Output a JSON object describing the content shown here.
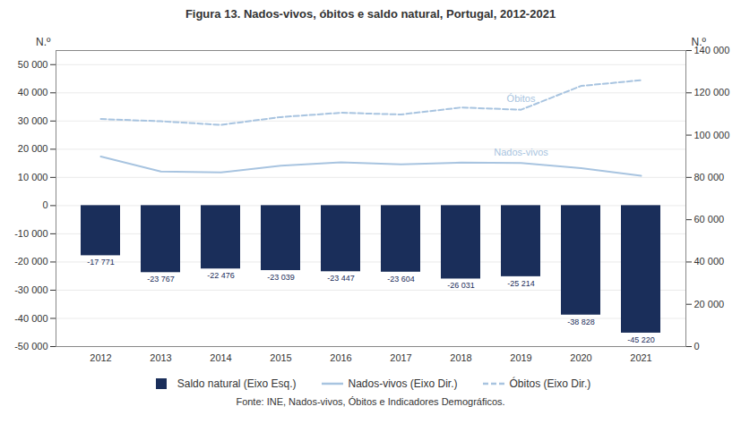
{
  "chart_data": {
    "type": "bar",
    "title": "Figura 13. Nados-vivos, óbitos e saldo natural, Portugal, 2012-2021",
    "caption": "Fonte: INE, Nados-vivos, Óbitos e Indicadores Demográficos.",
    "categories": [
      "2012",
      "2013",
      "2014",
      "2015",
      "2016",
      "2017",
      "2018",
      "2019",
      "2020",
      "2021"
    ],
    "ylabel": "N.º",
    "y2label": "N.º",
    "ylim": [
      -50000,
      55000
    ],
    "yticks": [
      {
        "value": -50000,
        "label": "-50 000"
      },
      {
        "value": -40000,
        "label": "-40 000"
      },
      {
        "value": -30000,
        "label": "-30 000"
      },
      {
        "value": -20000,
        "label": "-20 000"
      },
      {
        "value": -10000,
        "label": "-10 000"
      },
      0,
      {
        "value": 10000,
        "label": "10 000"
      },
      {
        "value": 20000,
        "label": "20 000"
      },
      {
        "value": 30000,
        "label": "30 000"
      },
      {
        "value": 40000,
        "label": "40 000"
      },
      {
        "value": 50000,
        "label": "50 000"
      }
    ],
    "y2lim": [
      0,
      140000
    ],
    "y2ticks": [
      0,
      {
        "value": 20000,
        "label": "20 000"
      },
      {
        "value": 40000,
        "label": "40 000"
      },
      {
        "value": 60000,
        "label": "60 000"
      },
      {
        "value": 80000,
        "label": "80 000"
      },
      {
        "value": 100000,
        "label": "100 000"
      },
      {
        "value": 120000,
        "label": "120 000"
      },
      {
        "value": 140000,
        "label": "140 000"
      }
    ],
    "grid": true,
    "legend": "bottom",
    "data_labels": true,
    "series": [
      {
        "name": "Saldo natural (Eixo Esq.)",
        "type": "bar",
        "color": "#1a2e5a",
        "values": [
          -17771,
          -23767,
          -22476,
          -23039,
          -23447,
          -23604,
          -26031,
          -25214,
          -38828,
          -45220
        ],
        "value_labels": [
          "-17 771",
          "-23 767",
          "-22 476",
          "-23 039",
          "-23 447",
          "-23 604",
          "-26 031",
          "-25 214",
          "-38 828",
          "-45 220"
        ]
      },
      {
        "name": "Nados-vivos (Eixo Dir.)",
        "type": "line",
        "axis": "y2",
        "color": "#a8c4e0",
        "line_style": "solid",
        "values": [
          89841,
          82787,
          82367,
          85500,
          87126,
          86154,
          87020,
          86789,
          84426,
          80754
        ]
      },
      {
        "name": "Óbitos (Eixo Dir.)",
        "type": "line",
        "axis": "y2",
        "color": "#a8c4e0",
        "line_style": "dashed",
        "values": [
          107612,
          106554,
          104843,
          108539,
          110573,
          109758,
          113051,
          112003,
          123254,
          125974
        ]
      }
    ],
    "annotations": [
      "Nados-vivos",
      "Óbitos"
    ]
  }
}
